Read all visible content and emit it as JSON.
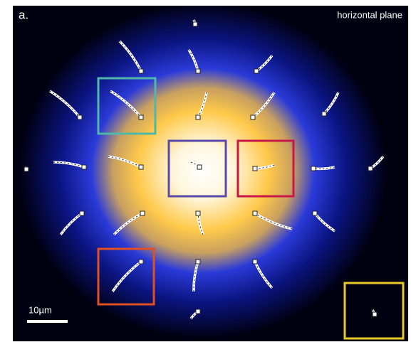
{
  "panel_label": "a.",
  "title": "horizontal plane",
  "scale_bar": {
    "label": "10µm"
  }
}
